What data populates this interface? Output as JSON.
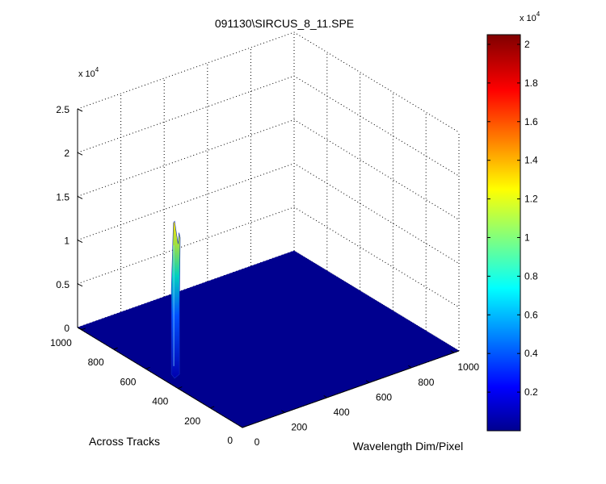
{
  "chart_data": {
    "type": "surface",
    "title": "091130\\SIRCUS_8_11.SPE",
    "xlabel": "Wavelength Dim/Pixel",
    "ylabel": "Across Tracks",
    "zlabel": "",
    "x_ticks": [
      "0",
      "200",
      "400",
      "600",
      "800",
      "1000"
    ],
    "y_ticks": [
      "0",
      "200",
      "400",
      "600",
      "800",
      "1000"
    ],
    "z_ticks": [
      "0",
      "0.5",
      "1",
      "1.5",
      "2",
      "2.5"
    ],
    "z_exponent": "x 10",
    "z_exponent_power": "4",
    "xlim": [
      0,
      1024
    ],
    "ylim": [
      0,
      1024
    ],
    "zlim": [
      0,
      25000
    ],
    "grid": true,
    "colormap": "jet",
    "background_level": 0,
    "peak": {
      "x": 60,
      "y": 500,
      "z_max": 17500,
      "secondary_z": 16000
    },
    "colorbar": {
      "ticks": [
        "0.2",
        "0.4",
        "0.6",
        "0.8",
        "1",
        "1.2",
        "1.4",
        "1.6",
        "1.8",
        "2"
      ],
      "range": [
        0,
        20500
      ],
      "exponent": "x 10",
      "exponent_power": "4"
    }
  }
}
